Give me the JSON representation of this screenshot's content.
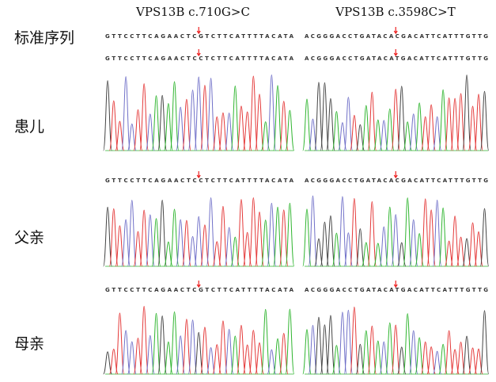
{
  "headers": [
    "VPS13B c.710G>C",
    "VPS13B c.3598C>T"
  ],
  "rows": [
    {
      "label": "标准序列",
      "left": "GTTCCTTCAGAACTCGTCTTCATTTTACATA",
      "right": "ACGGGACCTGATACACGACATTCATTTGTTG"
    },
    {
      "label": "患儿",
      "left": "GTTCCTTCAGAACTCCTCTTCATTTTACATA",
      "right": "ACGGGACCTGATACATGACATTCATTTGTTG"
    },
    {
      "label": "父亲",
      "left": "GTTCCTTCAGAACTCCTCTTCATTTTACATA",
      "right": "ACGGGACCTGATACACGACATTCATTTGTTG"
    },
    {
      "label": "母亲",
      "left": "GTTCCTTCAGAACTCGTCTTCATTTTACATA",
      "right": "ACGGGACCTGATACATGACATTCATTTGTTG"
    }
  ]
}
